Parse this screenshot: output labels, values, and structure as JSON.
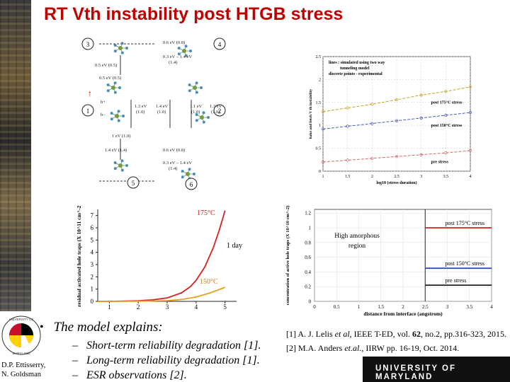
{
  "slide": {
    "title": "RT Vth instability post HTGB stress"
  },
  "mechanism_diagram": {
    "states": [
      "1",
      "2",
      "3",
      "4",
      "5",
      "6"
    ],
    "energies": {
      "e34": "0.6 eV (0.8)",
      "e34b": "0.3 eV – 1.4 eV",
      "e34c": "(1.4)",
      "e3a": "0.5 eV (0.5)",
      "e3b": "0.5 eV (0.5)",
      "e1l": "1.3 eV",
      "e1l2": "(1.0)",
      "e1r": "1.4 eV",
      "e1r2": "(1.0)",
      "e2l": "1.1 eV",
      "e2l2": "(1.0)",
      "e2r": "1.3 eV",
      "e2r2": "(1.0)",
      "e5a": "1 eV (1.0)",
      "e5b": "1.4 eV (1.4)",
      "e56": "0.6 eV (0.8)",
      "e56b": "0.3 eV – 1.4 eV",
      "e56c": "(1.4)",
      "charge": "h+",
      "charge2": "b–"
    }
  },
  "chart_data": [
    {
      "type": "line",
      "title": "",
      "xlabel": "log10 (stress duration)",
      "ylabel": "bake and fetch V th instability",
      "xlim": [
        1,
        4
      ],
      "ylim": [
        0,
        2.5
      ],
      "xticks": [
        "1",
        "1.5",
        "2",
        "2.5",
        "3",
        "3.5",
        "4"
      ],
      "yticks": [
        "0",
        "0.5",
        "1",
        "1.5",
        "2",
        "2.5"
      ],
      "legend": {
        "lines_label": "lines : simulated using two way",
        "lines_label2": "tunneling model",
        "points_label": "discrete points - experimental"
      },
      "series": [
        {
          "name": "post 175°C stress",
          "color": "#c9a227",
          "x": [
            1,
            1.5,
            2,
            2.5,
            3,
            3.5,
            4
          ],
          "y": [
            1.3,
            1.38,
            1.46,
            1.56,
            1.66,
            1.74,
            1.84
          ]
        },
        {
          "name": "post 150°C stress",
          "color": "#4a5fc1",
          "x": [
            1,
            1.5,
            2,
            2.5,
            3,
            3.5,
            4
          ],
          "y": [
            0.92,
            0.98,
            1.04,
            1.1,
            1.16,
            1.22,
            1.28
          ]
        },
        {
          "name": "pre stress",
          "color": "#d36a6a",
          "x": [
            1,
            1.5,
            2,
            2.5,
            3,
            3.5,
            4
          ],
          "y": [
            0.2,
            0.24,
            0.28,
            0.32,
            0.36,
            0.4,
            0.45
          ]
        }
      ],
      "grid": true
    },
    {
      "type": "line",
      "title": "",
      "xlabel": "",
      "ylabel": "residual activated hole traps (X 10^11 cm^-2)",
      "xlim": [
        0.6,
        5.4
      ],
      "ylim": [
        0,
        7.5
      ],
      "xticks": [
        "1",
        "2",
        "3",
        "4",
        "5"
      ],
      "yticks": [
        "0",
        "1",
        "2",
        "3",
        "4",
        "5",
        "6",
        "7"
      ],
      "annotations": {
        "curve_175": "175°C",
        "curve_150": "150°C",
        "marker": "1 day"
      },
      "series": [
        {
          "name": "175°C",
          "color": "#d42020",
          "x": [
            0.6,
            1,
            1.5,
            2,
            2.5,
            3,
            3.5,
            3.8,
            4,
            4.3,
            4.6,
            4.8,
            5
          ],
          "y": [
            0,
            0,
            0.02,
            0.05,
            0.12,
            0.28,
            0.7,
            1.2,
            1.7,
            2.8,
            4.4,
            5.8,
            7.4
          ]
        },
        {
          "name": "150°C",
          "color": "#e8a020",
          "x": [
            0.6,
            1,
            1.5,
            2,
            2.5,
            3,
            3.5,
            4,
            4.5,
            5
          ],
          "y": [
            0,
            0,
            0,
            0.01,
            0.03,
            0.06,
            0.15,
            0.35,
            0.7,
            1.15
          ]
        }
      ]
    },
    {
      "type": "line",
      "title": "",
      "xlabel": "distance from interface (angstrom)",
      "ylabel": "concentration of active hole traps (X 10^10 cm^-2)",
      "xlim": [
        0,
        4
      ],
      "ylim": [
        0,
        1.25
      ],
      "xticks": [
        "0",
        "0.5",
        "1",
        "1.5",
        "2",
        "2.5",
        "3",
        "3.5",
        "4"
      ],
      "yticks": [
        "0",
        "0.2",
        "0.4",
        "0.6",
        "0.8",
        "1",
        "1.2"
      ],
      "annotation": "High amorphous region",
      "annotation_line1": "High amorphous",
      "annotation_line2": "region",
      "boundary_x": 2.5,
      "series": [
        {
          "name": "post 175°C stress",
          "color": "#d42020",
          "x": [
            2.5,
            4
          ],
          "y": [
            1.0,
            1.0
          ]
        },
        {
          "name": "post 150°C stress",
          "color": "#3050c0",
          "x": [
            2.5,
            4
          ],
          "y": [
            0.45,
            0.45
          ]
        },
        {
          "name": "pre stress",
          "color": "#222222",
          "x": [
            2.5,
            4
          ],
          "y": [
            0.22,
            0.22
          ]
        }
      ],
      "grid": true
    }
  ],
  "content": {
    "bullet": "The model explains:",
    "items": [
      "Short-term reliability degradation [1].",
      "Long-term reliability degradation [1].",
      "ESR observations [2]."
    ],
    "dash": "–",
    "bullet_symbol": "•"
  },
  "references": {
    "r1_pre": "[1] A. J. Lelis ",
    "r1_etal": "et al",
    "r1_mid": ", IEEE T-ED, vol. ",
    "r1_vol": "62",
    "r1_post": ", no.2, pp.316-323, 2015.",
    "r2_pre": "[2] M.A. Anders ",
    "r2_etal": "et.al.",
    "r2_post": ", IIRW pp. 16-19, Oct. 2014."
  },
  "footer": {
    "authors_line1": "D.P. Ettisserry,",
    "authors_line2": "N. Goldsman",
    "university": "UNIVERSITY OF MARYLAND",
    "seal_text": "UNIVERSITY OF MARYLAND"
  },
  "colors": {
    "title": "#c00000",
    "footer_bar": "#111111"
  }
}
